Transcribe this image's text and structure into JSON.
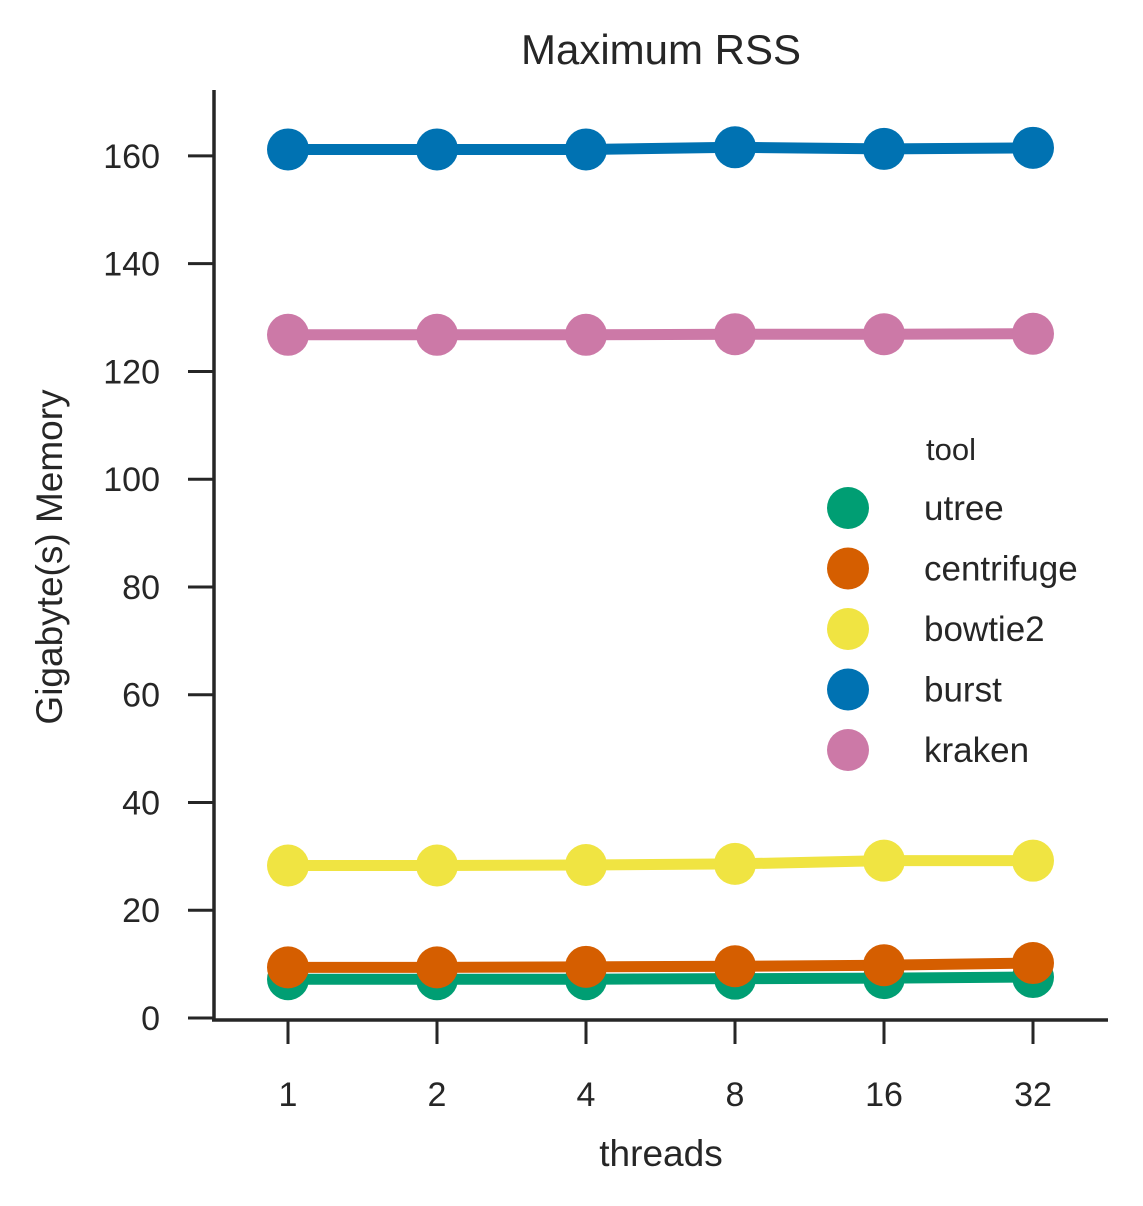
{
  "chart_data": {
    "type": "line",
    "title": "Maximum RSS",
    "xlabel": "threads",
    "ylabel": "Gigabyte(s) Memory",
    "categories": [
      "1",
      "2",
      "4",
      "8",
      "16",
      "32"
    ],
    "ylim": [
      0,
      172
    ],
    "yticks": [
      0,
      20,
      40,
      60,
      80,
      100,
      120,
      140,
      160
    ],
    "grid": false,
    "legend": {
      "title": "tool",
      "placement": "right"
    },
    "series": [
      {
        "name": "utree",
        "color": "#009e73",
        "values": [
          7.2,
          7.2,
          7.2,
          7.3,
          7.4,
          7.6
        ]
      },
      {
        "name": "centrifuge",
        "color": "#d55e00",
        "values": [
          9.4,
          9.4,
          9.5,
          9.6,
          9.8,
          10.2
        ]
      },
      {
        "name": "bowtie2",
        "color": "#f0e442",
        "values": [
          28.3,
          28.3,
          28.4,
          28.6,
          29.2,
          29.2
        ]
      },
      {
        "name": "burst",
        "color": "#0072b2",
        "values": [
          161.2,
          161.2,
          161.2,
          161.6,
          161.3,
          161.5
        ]
      },
      {
        "name": "kraken",
        "color": "#cc79a7",
        "values": [
          126.8,
          126.8,
          126.8,
          126.9,
          126.9,
          127.0
        ]
      }
    ]
  }
}
